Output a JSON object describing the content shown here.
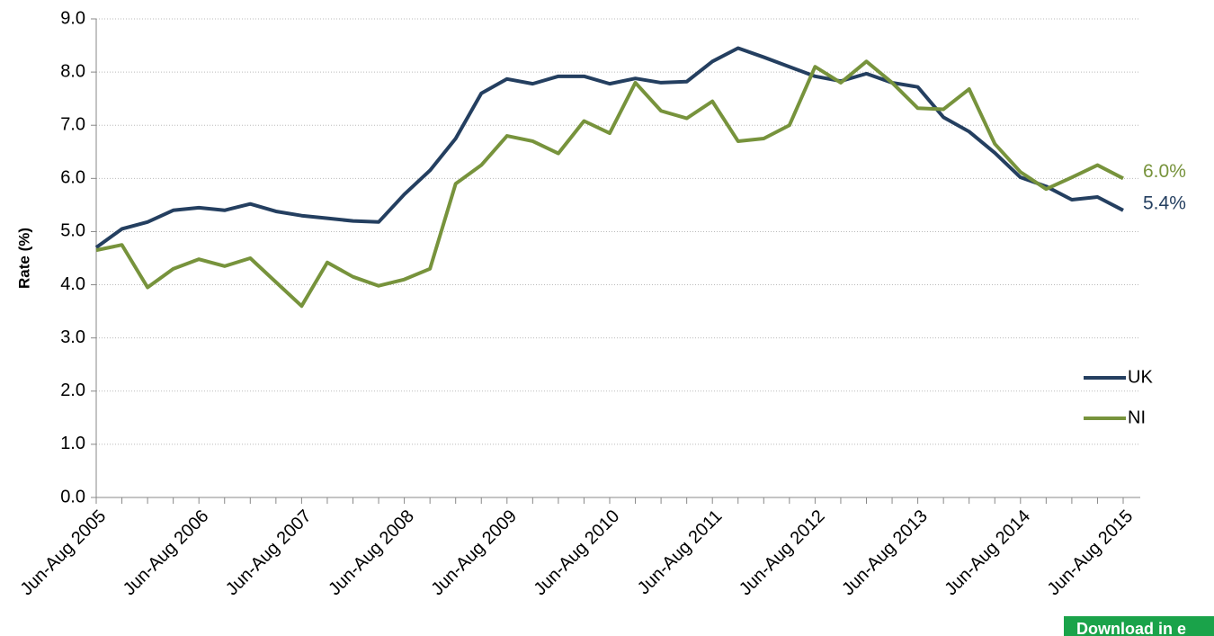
{
  "chart_data": {
    "type": "line",
    "y_label": "Rate (%)",
    "categories": [
      "Jun-Aug 2005",
      null,
      null,
      null,
      "Jun-Aug 2006",
      null,
      null,
      null,
      "Jun-Aug 2007",
      null,
      null,
      null,
      "Jun-Aug 2008",
      null,
      null,
      null,
      "Jun-Aug 2009",
      null,
      null,
      null,
      "Jun-Aug 2010",
      null,
      null,
      null,
      "Jun-Aug 2011",
      null,
      null,
      null,
      "Jun-Aug 2012",
      null,
      null,
      null,
      "Jun-Aug 2013",
      null,
      null,
      null,
      "Jun-Aug 2014",
      null,
      null,
      null,
      "Jun-Aug 2015"
    ],
    "series": [
      {
        "name": "UK",
        "color": "#243f60",
        "values": [
          4.7,
          5.05,
          5.18,
          5.4,
          5.45,
          5.4,
          5.52,
          5.38,
          5.3,
          5.25,
          5.2,
          5.18,
          5.7,
          6.15,
          6.75,
          7.6,
          7.87,
          7.78,
          7.92,
          7.92,
          7.78,
          7.88,
          7.8,
          7.82,
          8.2,
          8.45,
          8.28,
          8.1,
          7.92,
          7.83,
          7.97,
          7.8,
          7.72,
          7.15,
          6.88,
          6.48,
          6.02,
          5.85,
          5.6,
          5.65,
          5.4
        ],
        "value_labels": [
          null,
          null,
          null,
          null,
          null,
          null,
          null,
          null,
          null,
          null,
          null,
          null,
          null,
          null,
          null,
          null,
          null,
          null,
          null,
          null,
          null,
          null,
          null,
          null,
          null,
          null,
          null,
          null,
          null,
          null,
          null,
          null,
          null,
          null,
          null,
          null,
          null,
          null,
          null,
          null,
          "5.4%"
        ]
      },
      {
        "name": "NI",
        "color": "#77933c",
        "values": [
          4.65,
          4.75,
          3.95,
          4.3,
          4.48,
          4.35,
          4.5,
          4.05,
          3.6,
          4.42,
          4.15,
          3.98,
          4.1,
          4.3,
          5.9,
          6.25,
          6.8,
          6.7,
          6.47,
          7.08,
          6.85,
          7.8,
          7.27,
          7.13,
          7.45,
          6.7,
          6.75,
          7.0,
          8.1,
          7.8,
          8.2,
          7.8,
          7.32,
          7.3,
          7.68,
          6.65,
          6.12,
          5.8,
          6.02,
          6.25,
          6.0
        ],
        "value_labels": [
          null,
          null,
          null,
          null,
          null,
          null,
          null,
          null,
          null,
          null,
          null,
          null,
          null,
          null,
          null,
          null,
          null,
          null,
          null,
          null,
          null,
          null,
          null,
          null,
          null,
          null,
          null,
          null,
          null,
          null,
          null,
          null,
          null,
          null,
          null,
          null,
          null,
          null,
          null,
          null,
          "6.0%"
        ]
      }
    ],
    "ylim": [
      0,
      9
    ],
    "yticks": [
      {
        "value": 0,
        "label": "0.0"
      },
      {
        "value": 1,
        "label": "1.0"
      },
      {
        "value": 2,
        "label": "2.0"
      },
      {
        "value": 3,
        "label": "3.0"
      },
      {
        "value": 4,
        "label": "4.0"
      },
      {
        "value": 5,
        "label": "5.0"
      },
      {
        "value": 6,
        "label": "6.0"
      },
      {
        "value": 7,
        "label": "7.0"
      },
      {
        "value": 8,
        "label": "8.0"
      },
      {
        "value": 9,
        "label": "9.0"
      }
    ],
    "grid": true,
    "legend": "right"
  },
  "button": {
    "label": "Download in e"
  }
}
